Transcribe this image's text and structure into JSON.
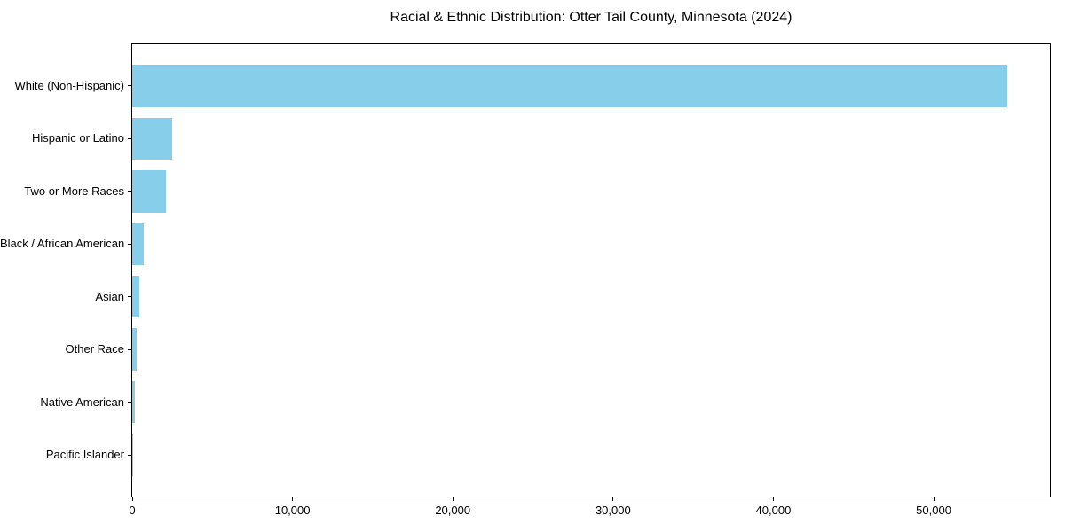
{
  "figure": {
    "background": "#ffffff"
  },
  "chart_data": {
    "type": "bar",
    "orientation": "horizontal",
    "title": "Racial & Ethnic Distribution: Otter Tail County, Minnesota (2024)",
    "categories": [
      "White (Non-Hispanic)",
      "Hispanic or Latino",
      "Two or More Races",
      "Black / African American",
      "Asian",
      "Other Race",
      "Native American",
      "Pacific Islander"
    ],
    "values": [
      54600,
      2500,
      2100,
      700,
      450,
      300,
      180,
      30
    ],
    "title_note": "",
    "xlabel": "",
    "ylabel": "",
    "xlim": [
      0,
      57250
    ],
    "xticks": [
      0,
      10000,
      20000,
      30000,
      40000,
      50000
    ],
    "xtick_labels": [
      "0",
      "10,000",
      "20,000",
      "30,000",
      "40,000",
      "50,000"
    ],
    "bar_color": "#87CEEB",
    "axis_color": "#000000",
    "text_color": "#000000",
    "grid": false,
    "legend": false
  }
}
